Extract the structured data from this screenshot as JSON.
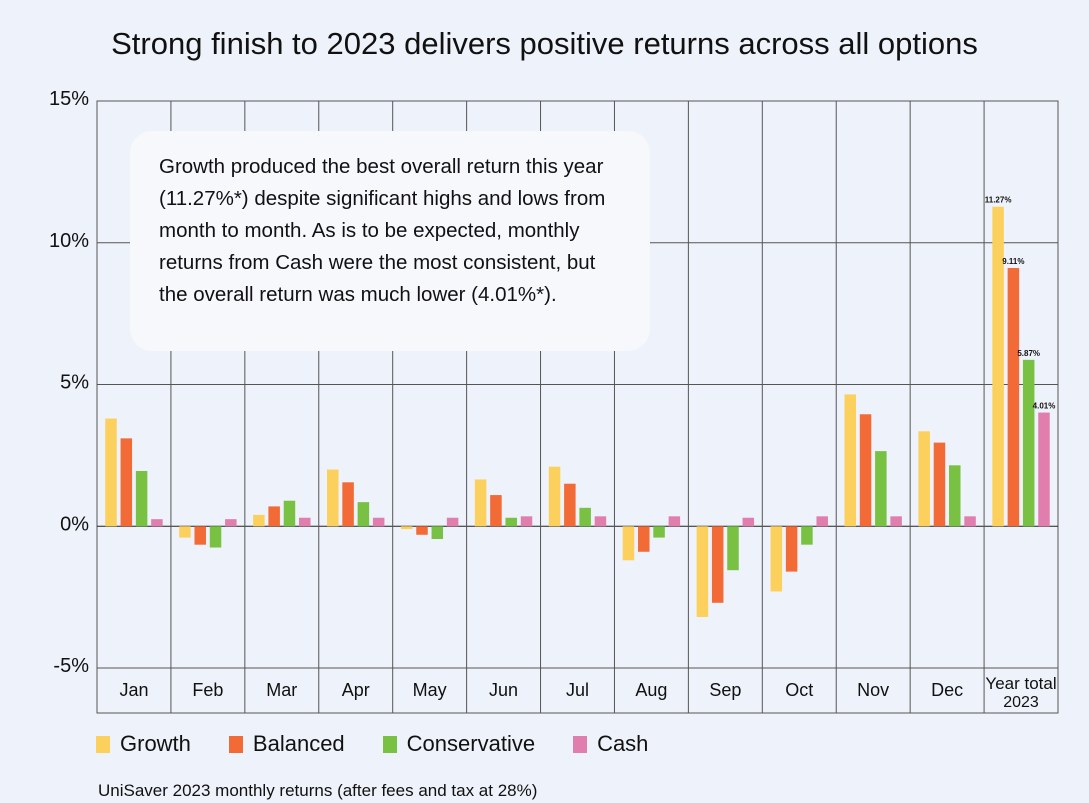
{
  "title": "Strong finish to 2023 delivers positive returns across all options",
  "callout": {
    "text": "Growth produced the best overall return this year (11.27%*) despite significant highs and lows from month to month. As is to be expected, monthly returns from Cash were the most consistent, but the overall return was much lower (4.01%*)."
  },
  "footer": "UniSaver 2023 monthly returns (after fees and tax at 28%)",
  "colors": {
    "growth": "#fcd05c",
    "balanced": "#f26a35",
    "conservative": "#79c143",
    "cash": "#e07fad",
    "background": "#eef2fa",
    "grid": "#555555"
  },
  "chart_data": {
    "type": "bar",
    "title": "Strong finish to 2023 delivers positive returns across all options",
    "categories": [
      "Jan",
      "Feb",
      "Mar",
      "Apr",
      "May",
      "Jun",
      "Jul",
      "Aug",
      "Sep",
      "Oct",
      "Nov",
      "Dec",
      "Year total 2023"
    ],
    "series": [
      {
        "name": "Growth",
        "color": "#fcd05c",
        "values": [
          3.8,
          -0.4,
          0.4,
          2.0,
          -0.1,
          1.65,
          2.1,
          -1.2,
          -3.2,
          -2.3,
          4.65,
          3.35,
          11.27
        ]
      },
      {
        "name": "Balanced",
        "color": "#f26a35",
        "values": [
          3.1,
          -0.65,
          0.7,
          1.55,
          -0.3,
          1.1,
          1.5,
          -0.9,
          -2.7,
          -1.6,
          3.95,
          2.95,
          9.11
        ]
      },
      {
        "name": "Conservative",
        "color": "#79c143",
        "values": [
          1.95,
          -0.75,
          0.9,
          0.85,
          -0.45,
          0.3,
          0.65,
          -0.4,
          -1.55,
          -0.65,
          2.65,
          2.15,
          5.87
        ]
      },
      {
        "name": "Cash",
        "color": "#e07fad",
        "values": [
          0.25,
          0.25,
          0.3,
          0.3,
          0.3,
          0.35,
          0.35,
          0.35,
          0.3,
          0.35,
          0.35,
          0.35,
          4.01
        ]
      }
    ],
    "data_labels": {
      "category": "Year total 2023",
      "labels": [
        "11.27%",
        "9.11%",
        "5.87%",
        "4.01%"
      ]
    },
    "y_ticks": [
      "15%",
      "10%",
      "5%",
      "0%",
      "-5%"
    ],
    "y_tick_values": [
      15,
      10,
      5,
      0,
      -5
    ],
    "ylim": [
      -5,
      15
    ],
    "xlabel": "",
    "ylabel": "",
    "grid": true,
    "legend": "bottom-left"
  },
  "legend": [
    {
      "label": "Growth",
      "color": "#fcd05c"
    },
    {
      "label": "Balanced",
      "color": "#f26a35"
    },
    {
      "label": "Conservative",
      "color": "#79c143"
    },
    {
      "label": "Cash",
      "color": "#e07fad"
    }
  ]
}
